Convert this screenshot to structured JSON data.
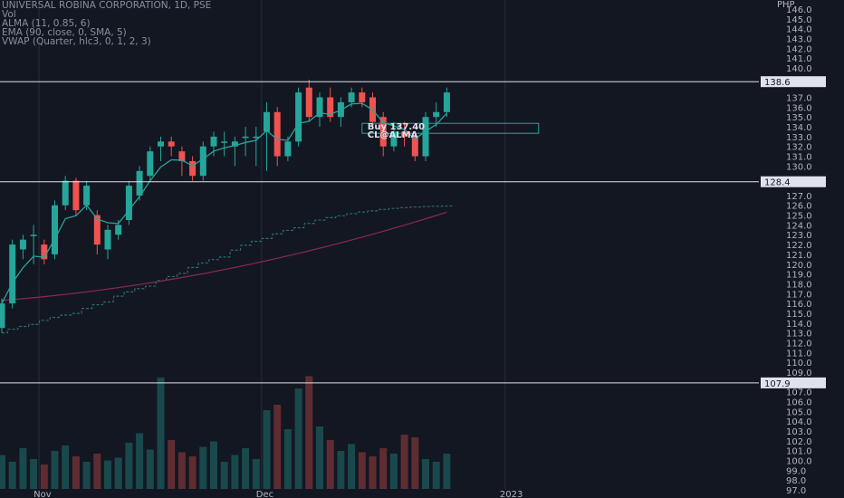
{
  "legend": {
    "title": "UNIVERSAL ROBINA CORPORATION, 1D, PSE",
    "vol": "Vol",
    "alma": "ALMA (11, 0.85, 6)",
    "ema": "EMA (90, close, 0, SMA, 5)",
    "vwap": "VWAP (Quarter, hlc3, 0, 1, 2, 3)"
  },
  "chart_data": {
    "type": "candlestick",
    "currency": "PHP",
    "ylim": [
      97,
      146.5
    ],
    "price_ticks": [
      146.0,
      145.0,
      144.0,
      143.0,
      142.0,
      141.0,
      140.0,
      139.0,
      138.0,
      137.0,
      136.0,
      135.0,
      134.0,
      133.0,
      132.0,
      131.0,
      130.0,
      129.0,
      128.0,
      127.0,
      126.0,
      125.0,
      124.0,
      123.0,
      122.0,
      121.0,
      120.0,
      119.0,
      118.0,
      117.0,
      116.0,
      115.0,
      114.0,
      113.0,
      112.0,
      111.0,
      110.0,
      109.0,
      108.0,
      107.0,
      106.0,
      105.0,
      104.0,
      103.0,
      102.0,
      101.0,
      100.0,
      99.0,
      98.0,
      97.0
    ],
    "horizontal_levels": [
      {
        "price": 138.6,
        "label": "138.6"
      },
      {
        "price": 128.4,
        "label": "128.4"
      },
      {
        "price": 107.9,
        "label": "107.9"
      }
    ],
    "date_labels": [
      {
        "label": "Nov",
        "index": 3
      },
      {
        "label": "Dec",
        "index": 24
      },
      {
        "label": "2023",
        "index": 47
      }
    ],
    "candles": [
      {
        "o": 113.5,
        "h": 116.5,
        "l": 113.0,
        "c": 116.0,
        "v": 0.25
      },
      {
        "o": 116.0,
        "h": 122.5,
        "l": 115.5,
        "c": 122.0,
        "v": 0.2
      },
      {
        "o": 121.5,
        "h": 123.0,
        "l": 120.5,
        "c": 122.5,
        "v": 0.3
      },
      {
        "o": 123.0,
        "h": 124.0,
        "l": 120.0,
        "c": 123.0,
        "v": 0.22
      },
      {
        "o": 122.0,
        "h": 122.5,
        "l": 120.0,
        "c": 120.5,
        "v": 0.18
      },
      {
        "o": 121.0,
        "h": 126.5,
        "l": 120.5,
        "c": 126.0,
        "v": 0.28
      },
      {
        "o": 126.0,
        "h": 129.0,
        "l": 125.5,
        "c": 128.5,
        "v": 0.32
      },
      {
        "o": 128.5,
        "h": 128.8,
        "l": 125.0,
        "c": 125.5,
        "v": 0.24
      },
      {
        "o": 126.0,
        "h": 128.5,
        "l": 125.5,
        "c": 128.0,
        "v": 0.2
      },
      {
        "o": 125.0,
        "h": 125.5,
        "l": 121.0,
        "c": 122.0,
        "v": 0.26
      },
      {
        "o": 121.5,
        "h": 124.0,
        "l": 120.5,
        "c": 123.5,
        "v": 0.21
      },
      {
        "o": 123.0,
        "h": 124.5,
        "l": 122.5,
        "c": 124.0,
        "v": 0.23
      },
      {
        "o": 124.5,
        "h": 128.5,
        "l": 124.0,
        "c": 128.0,
        "v": 0.34
      },
      {
        "o": 127.0,
        "h": 130.0,
        "l": 126.5,
        "c": 129.5,
        "v": 0.41
      },
      {
        "o": 129.0,
        "h": 132.0,
        "l": 128.5,
        "c": 131.5,
        "v": 0.29
      },
      {
        "o": 132.0,
        "h": 133.0,
        "l": 130.5,
        "c": 132.5,
        "v": 0.82
      },
      {
        "o": 132.5,
        "h": 133.0,
        "l": 131.0,
        "c": 132.0,
        "v": 0.36
      },
      {
        "o": 131.5,
        "h": 132.0,
        "l": 129.0,
        "c": 130.5,
        "v": 0.27
      },
      {
        "o": 130.5,
        "h": 131.0,
        "l": 128.5,
        "c": 129.0,
        "v": 0.24
      },
      {
        "o": 129.0,
        "h": 132.5,
        "l": 128.5,
        "c": 132.0,
        "v": 0.31
      },
      {
        "o": 132.0,
        "h": 133.5,
        "l": 131.0,
        "c": 133.0,
        "v": 0.35
      },
      {
        "o": 132.5,
        "h": 133.5,
        "l": 131.0,
        "c": 132.5,
        "v": 0.2
      },
      {
        "o": 132.0,
        "h": 133.0,
        "l": 130.0,
        "c": 132.5,
        "v": 0.25
      },
      {
        "o": 133.0,
        "h": 134.0,
        "l": 131.0,
        "c": 133.0,
        "v": 0.3
      },
      {
        "o": 133.0,
        "h": 134.0,
        "l": 130.0,
        "c": 133.0,
        "v": 0.22
      },
      {
        "o": 133.5,
        "h": 136.5,
        "l": 129.5,
        "c": 135.5,
        "v": 0.58
      },
      {
        "o": 135.5,
        "h": 136.0,
        "l": 130.0,
        "c": 131.0,
        "v": 0.62
      },
      {
        "o": 131.0,
        "h": 133.0,
        "l": 130.5,
        "c": 132.5,
        "v": 0.44
      },
      {
        "o": 132.5,
        "h": 138.0,
        "l": 132.0,
        "c": 137.5,
        "v": 0.74
      },
      {
        "o": 138.0,
        "h": 138.8,
        "l": 134.5,
        "c": 135.0,
        "v": 0.83
      },
      {
        "o": 135.0,
        "h": 137.5,
        "l": 134.0,
        "c": 137.0,
        "v": 0.46
      },
      {
        "o": 137.0,
        "h": 138.0,
        "l": 134.5,
        "c": 135.0,
        "v": 0.36
      },
      {
        "o": 135.0,
        "h": 137.0,
        "l": 134.0,
        "c": 136.5,
        "v": 0.28
      },
      {
        "o": 136.5,
        "h": 138.0,
        "l": 136.0,
        "c": 137.5,
        "v": 0.33
      },
      {
        "o": 137.5,
        "h": 138.0,
        "l": 136.0,
        "c": 136.5,
        "v": 0.27
      },
      {
        "o": 137.0,
        "h": 137.5,
        "l": 134.0,
        "c": 134.5,
        "v": 0.24
      },
      {
        "o": 135.0,
        "h": 135.5,
        "l": 131.0,
        "c": 132.0,
        "v": 0.3
      },
      {
        "o": 132.0,
        "h": 134.5,
        "l": 131.5,
        "c": 133.5,
        "v": 0.26
      },
      {
        "o": 133.5,
        "h": 134.5,
        "l": 132.0,
        "c": 133.0,
        "v": 0.4
      },
      {
        "o": 133.0,
        "h": 133.5,
        "l": 130.5,
        "c": 131.0,
        "v": 0.38
      },
      {
        "o": 131.0,
        "h": 135.5,
        "l": 130.5,
        "c": 135.0,
        "v": 0.22
      },
      {
        "o": 135.0,
        "h": 136.5,
        "l": 134.0,
        "c": 135.5,
        "v": 0.2
      },
      {
        "o": 135.5,
        "h": 138.0,
        "l": 135.0,
        "c": 137.5,
        "v": 0.26
      }
    ],
    "vwap_start": 112.5,
    "ema_start": 116.3,
    "ema_end": 125.3,
    "annotation": {
      "line1": "Buy 137.40",
      "line2": "CL@ALMA"
    }
  }
}
